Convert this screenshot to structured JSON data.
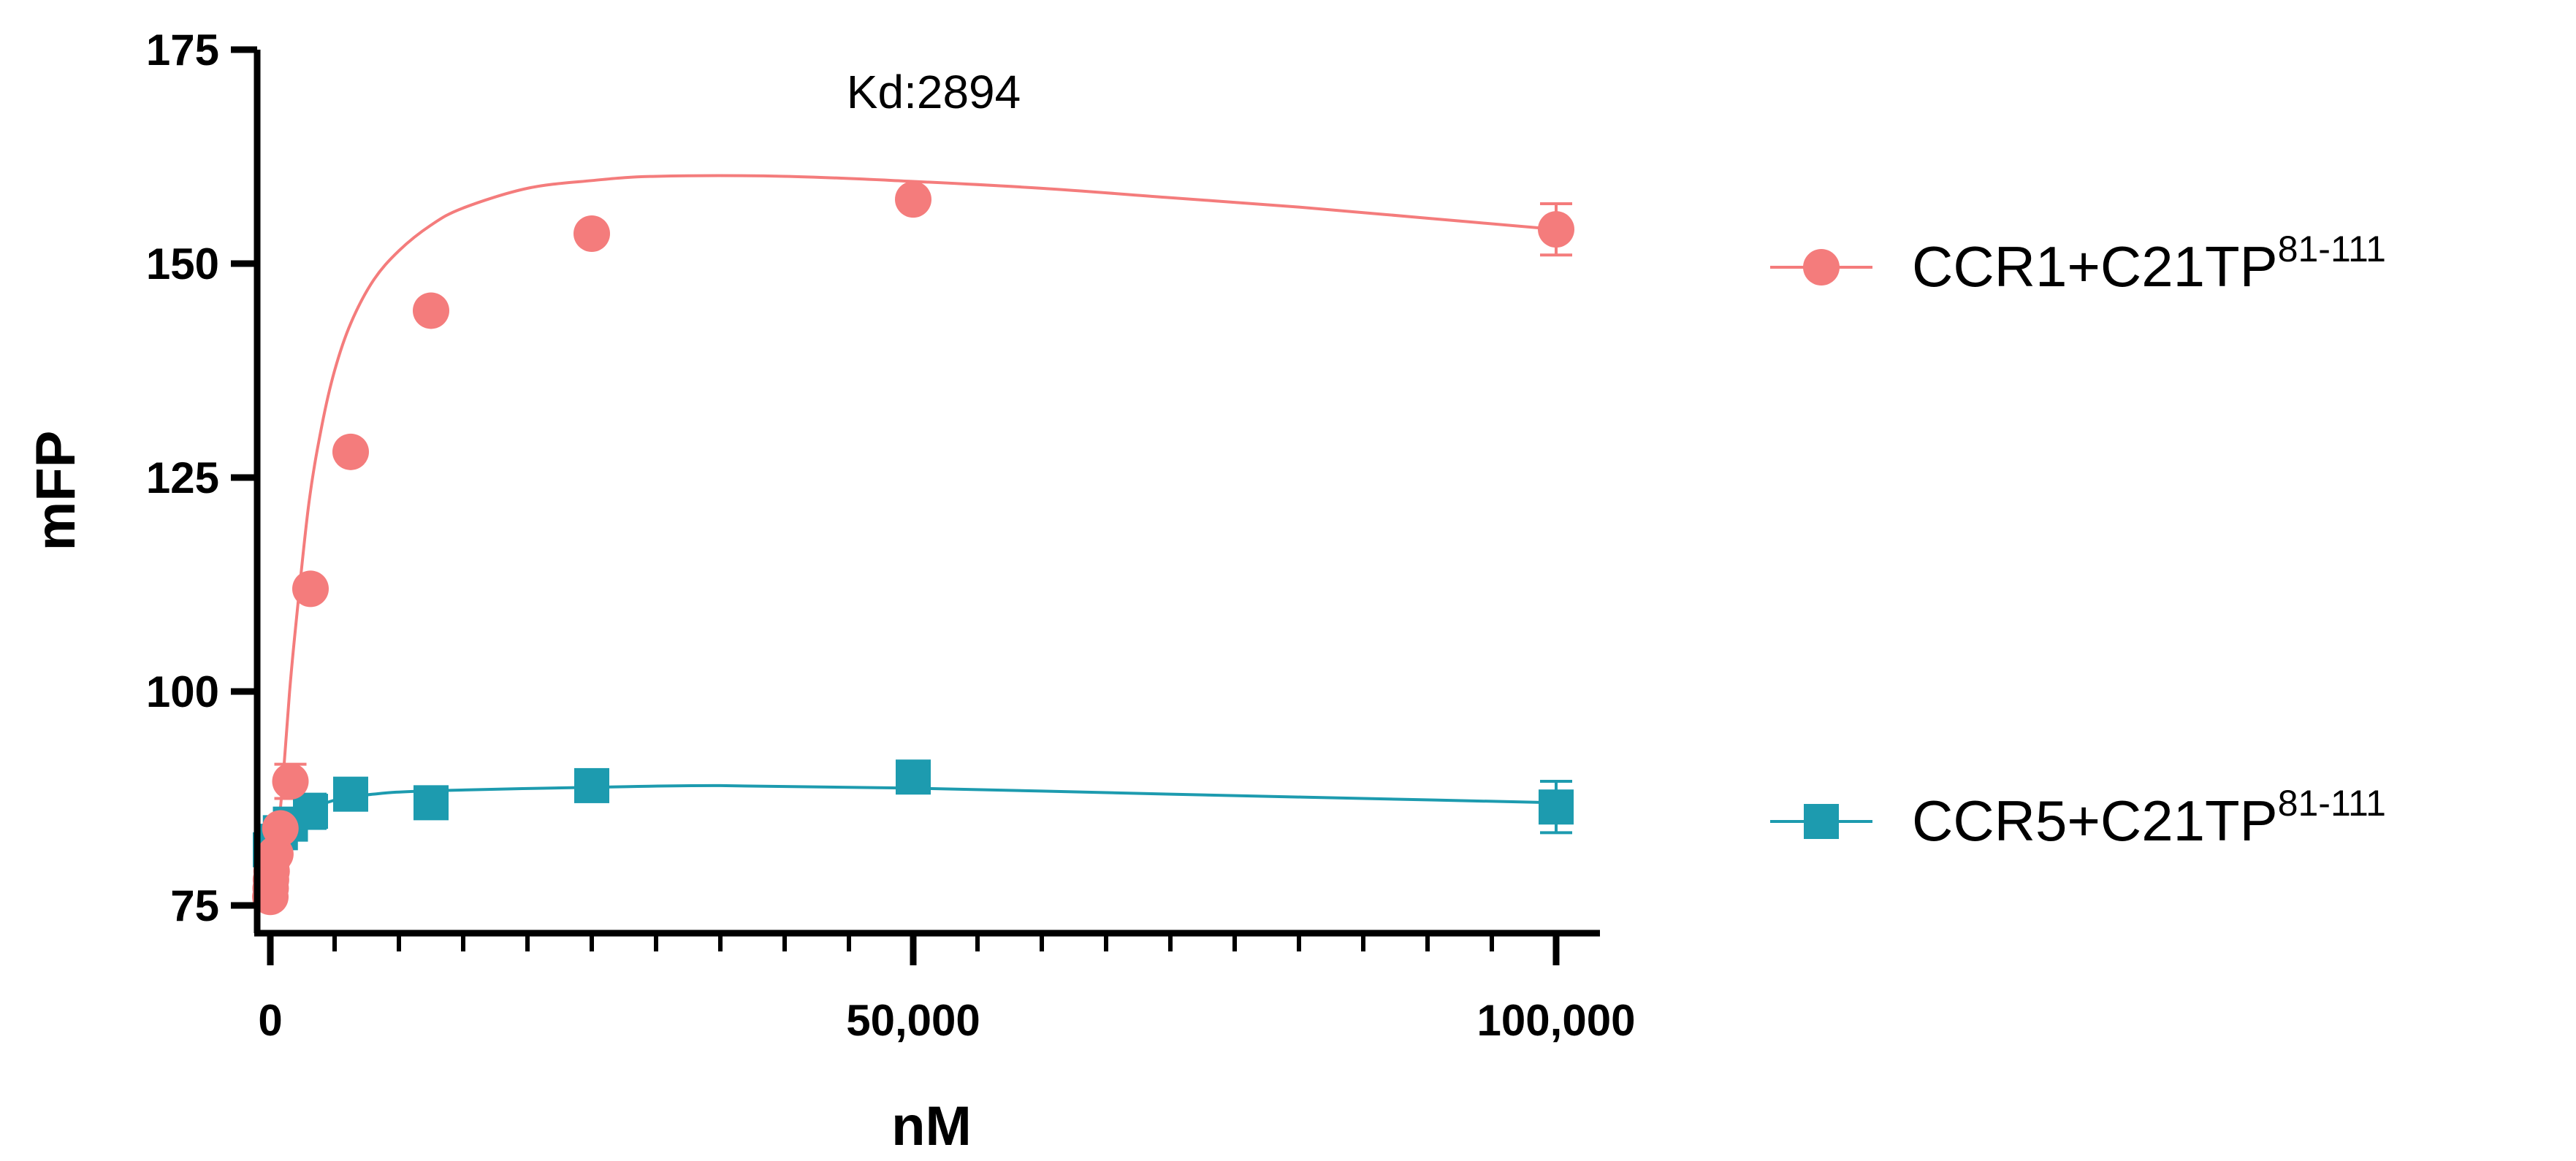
{
  "chart_data": {
    "type": "scatter",
    "title": "",
    "xlabel": "nM",
    "ylabel": "mFP",
    "xlim": [
      0,
      100000
    ],
    "ylim": [
      75,
      175
    ],
    "x_ticks": [
      0,
      50000,
      100000
    ],
    "x_tick_labels": [
      "0",
      "50,000",
      "100,000"
    ],
    "y_ticks": [
      75,
      100,
      125,
      150,
      175
    ],
    "y_tick_labels": [
      "75",
      "100",
      "125",
      "150",
      "175"
    ],
    "annotation": "Kd:2894",
    "legend_position": "right",
    "series": [
      {
        "name": "CCR1+C21TP",
        "name_superscript": "81-111",
        "color": "#F47C7C",
        "marker": "circle",
        "x": [
          0,
          24,
          49,
          98,
          195,
          391,
          781,
          1563,
          3125,
          6250,
          12500,
          25000,
          50000,
          100000
        ],
        "y": [
          76,
          77,
          78,
          79,
          80.5,
          81,
          84,
          89.5,
          112,
          128,
          144.5,
          153.5,
          157.5,
          154
        ],
        "error": [
          0,
          0,
          0,
          0,
          0,
          0,
          0,
          2,
          0,
          0,
          0,
          0,
          0,
          3
        ],
        "fit": [
          [
            0,
            76
          ],
          [
            500,
            82
          ],
          [
            1000,
            90
          ],
          [
            1500,
            100
          ],
          [
            2000,
            108
          ],
          [
            3000,
            122
          ],
          [
            4000,
            131
          ],
          [
            5000,
            137.5
          ],
          [
            6250,
            143
          ],
          [
            8000,
            148
          ],
          [
            10000,
            151.5
          ],
          [
            12500,
            154.5
          ],
          [
            15000,
            156.5
          ],
          [
            20000,
            158.8
          ],
          [
            25000,
            159.7
          ],
          [
            30000,
            160.2
          ],
          [
            40000,
            160.2
          ],
          [
            50000,
            159.6
          ],
          [
            60000,
            158.8
          ],
          [
            70000,
            157.7
          ],
          [
            80000,
            156.6
          ],
          [
            90000,
            155.3
          ],
          [
            100000,
            154
          ]
        ]
      },
      {
        "name": "CCR5+C21TP",
        "name_superscript": "81-111",
        "color": "#1D9BAF",
        "marker": "square",
        "x": [
          0,
          391,
          781,
          1563,
          3125,
          6250,
          12500,
          25000,
          50000,
          100000
        ],
        "y": [
          81.5,
          82.5,
          83.5,
          84.5,
          86,
          88,
          87,
          89,
          90,
          86.5
        ],
        "error": [
          0,
          0,
          0,
          0,
          2,
          0,
          0,
          0,
          0,
          3
        ],
        "fit": [
          [
            0,
            79
          ],
          [
            1000,
            82
          ],
          [
            2000,
            84.5
          ],
          [
            3000,
            86
          ],
          [
            5000,
            87.3
          ],
          [
            8000,
            88
          ],
          [
            12500,
            88.4
          ],
          [
            25000,
            88.8
          ],
          [
            35000,
            89
          ],
          [
            50000,
            88.7
          ],
          [
            70000,
            88
          ],
          [
            85000,
            87.5
          ],
          [
            100000,
            87
          ]
        ]
      }
    ]
  }
}
